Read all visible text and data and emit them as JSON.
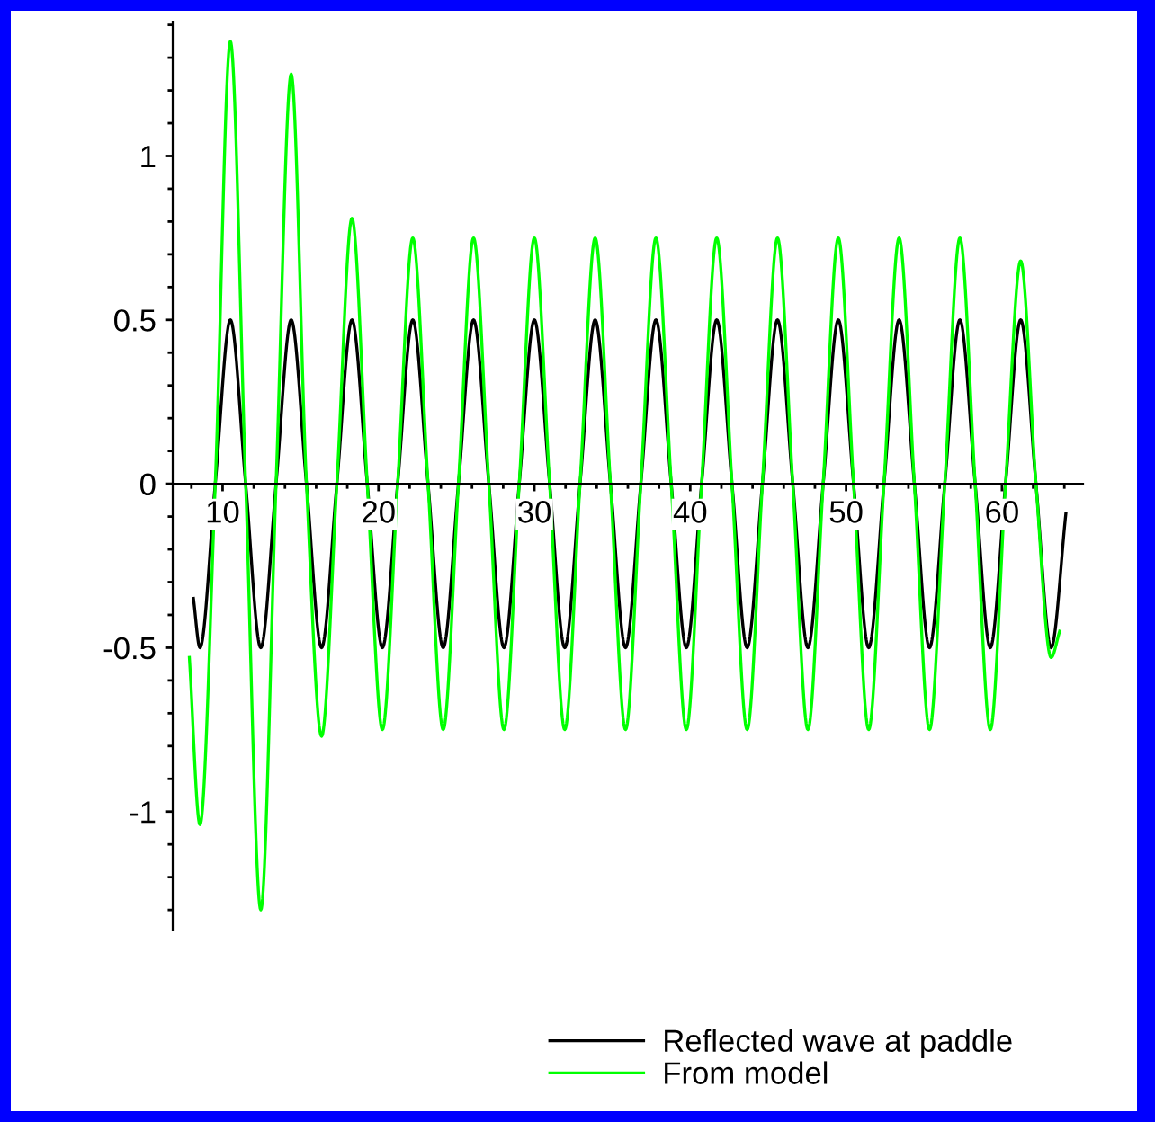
{
  "chart_data": {
    "type": "line",
    "xlim": [
      6.8,
      65.2
    ],
    "ylim": [
      -1.36,
      1.41
    ],
    "xticks": [
      10,
      20,
      30,
      40,
      50,
      60
    ],
    "yticks": [
      -1,
      -0.5,
      0,
      0.5,
      1
    ],
    "grid": false,
    "legend": "bottom",
    "marker": "none",
    "line_style": "solid",
    "series": [
      {
        "name": "Reflected wave at paddle",
        "color": "#000000",
        "x": [
          8.13,
          8.55,
          9.53,
          10.5,
          11.48,
          12.45,
          13.43,
          14.4,
          15.38,
          16.35,
          17.33,
          18.3,
          19.28,
          20.25,
          21.23,
          22.2,
          23.18,
          24.15,
          25.13,
          26.1,
          27.08,
          28.05,
          29.03,
          30.0,
          30.98,
          31.95,
          32.93,
          33.9,
          34.88,
          35.85,
          36.83,
          37.8,
          38.78,
          39.75,
          40.73,
          41.7,
          42.68,
          43.65,
          44.63,
          45.6,
          46.58,
          47.55,
          48.53,
          49.5,
          50.48,
          51.45,
          52.43,
          53.4,
          54.38,
          55.35,
          56.33,
          57.3,
          58.28,
          59.25,
          60.23,
          61.2,
          62.18,
          63.15,
          64.1
        ],
        "values": [
          -0.35,
          -0.5,
          0,
          0.5,
          0,
          -0.5,
          0,
          0.5,
          0,
          -0.5,
          0,
          0.5,
          0,
          -0.5,
          0,
          0.5,
          0,
          -0.5,
          0,
          0.5,
          0,
          -0.5,
          0,
          0.5,
          0,
          -0.5,
          0,
          0.5,
          0,
          -0.5,
          0,
          0.5,
          0,
          -0.5,
          0,
          0.5,
          0,
          -0.5,
          0,
          0.5,
          0,
          -0.5,
          0,
          0.5,
          0,
          -0.5,
          0,
          0.5,
          0,
          -0.5,
          0,
          0.5,
          0,
          -0.5,
          0,
          0.5,
          0,
          -0.5,
          -0.09
        ]
      },
      {
        "name": "From model",
        "color": "#00ff00",
        "x": [
          7.87,
          8.55,
          9.53,
          10.5,
          11.48,
          12.45,
          13.43,
          14.4,
          15.38,
          16.35,
          17.33,
          18.3,
          19.28,
          20.25,
          21.23,
          22.2,
          23.18,
          24.15,
          25.13,
          26.1,
          27.08,
          28.05,
          29.03,
          30.0,
          30.98,
          31.95,
          32.93,
          33.9,
          34.88,
          35.85,
          36.83,
          37.8,
          38.78,
          39.75,
          40.73,
          41.7,
          42.68,
          43.65,
          44.63,
          45.6,
          46.58,
          47.55,
          48.53,
          49.5,
          50.48,
          51.45,
          52.43,
          53.4,
          54.38,
          55.35,
          56.33,
          57.3,
          58.28,
          59.25,
          60.23,
          61.2,
          62.18,
          63.15,
          63.7
        ],
        "values": [
          -0.53,
          -1.04,
          0,
          1.35,
          0,
          -1.3,
          0,
          1.25,
          0,
          -0.77,
          0,
          0.81,
          0,
          -0.75,
          0,
          0.75,
          0,
          -0.75,
          0,
          0.75,
          0,
          -0.75,
          0,
          0.75,
          0,
          -0.75,
          0,
          0.75,
          0,
          -0.75,
          0,
          0.75,
          0,
          -0.75,
          0,
          0.75,
          0,
          -0.75,
          0,
          0.75,
          0,
          -0.75,
          0,
          0.75,
          0,
          -0.75,
          0,
          0.75,
          0,
          -0.75,
          0,
          0.75,
          0,
          -0.75,
          0,
          0.68,
          0,
          -0.53,
          -0.45
        ]
      }
    ]
  }
}
